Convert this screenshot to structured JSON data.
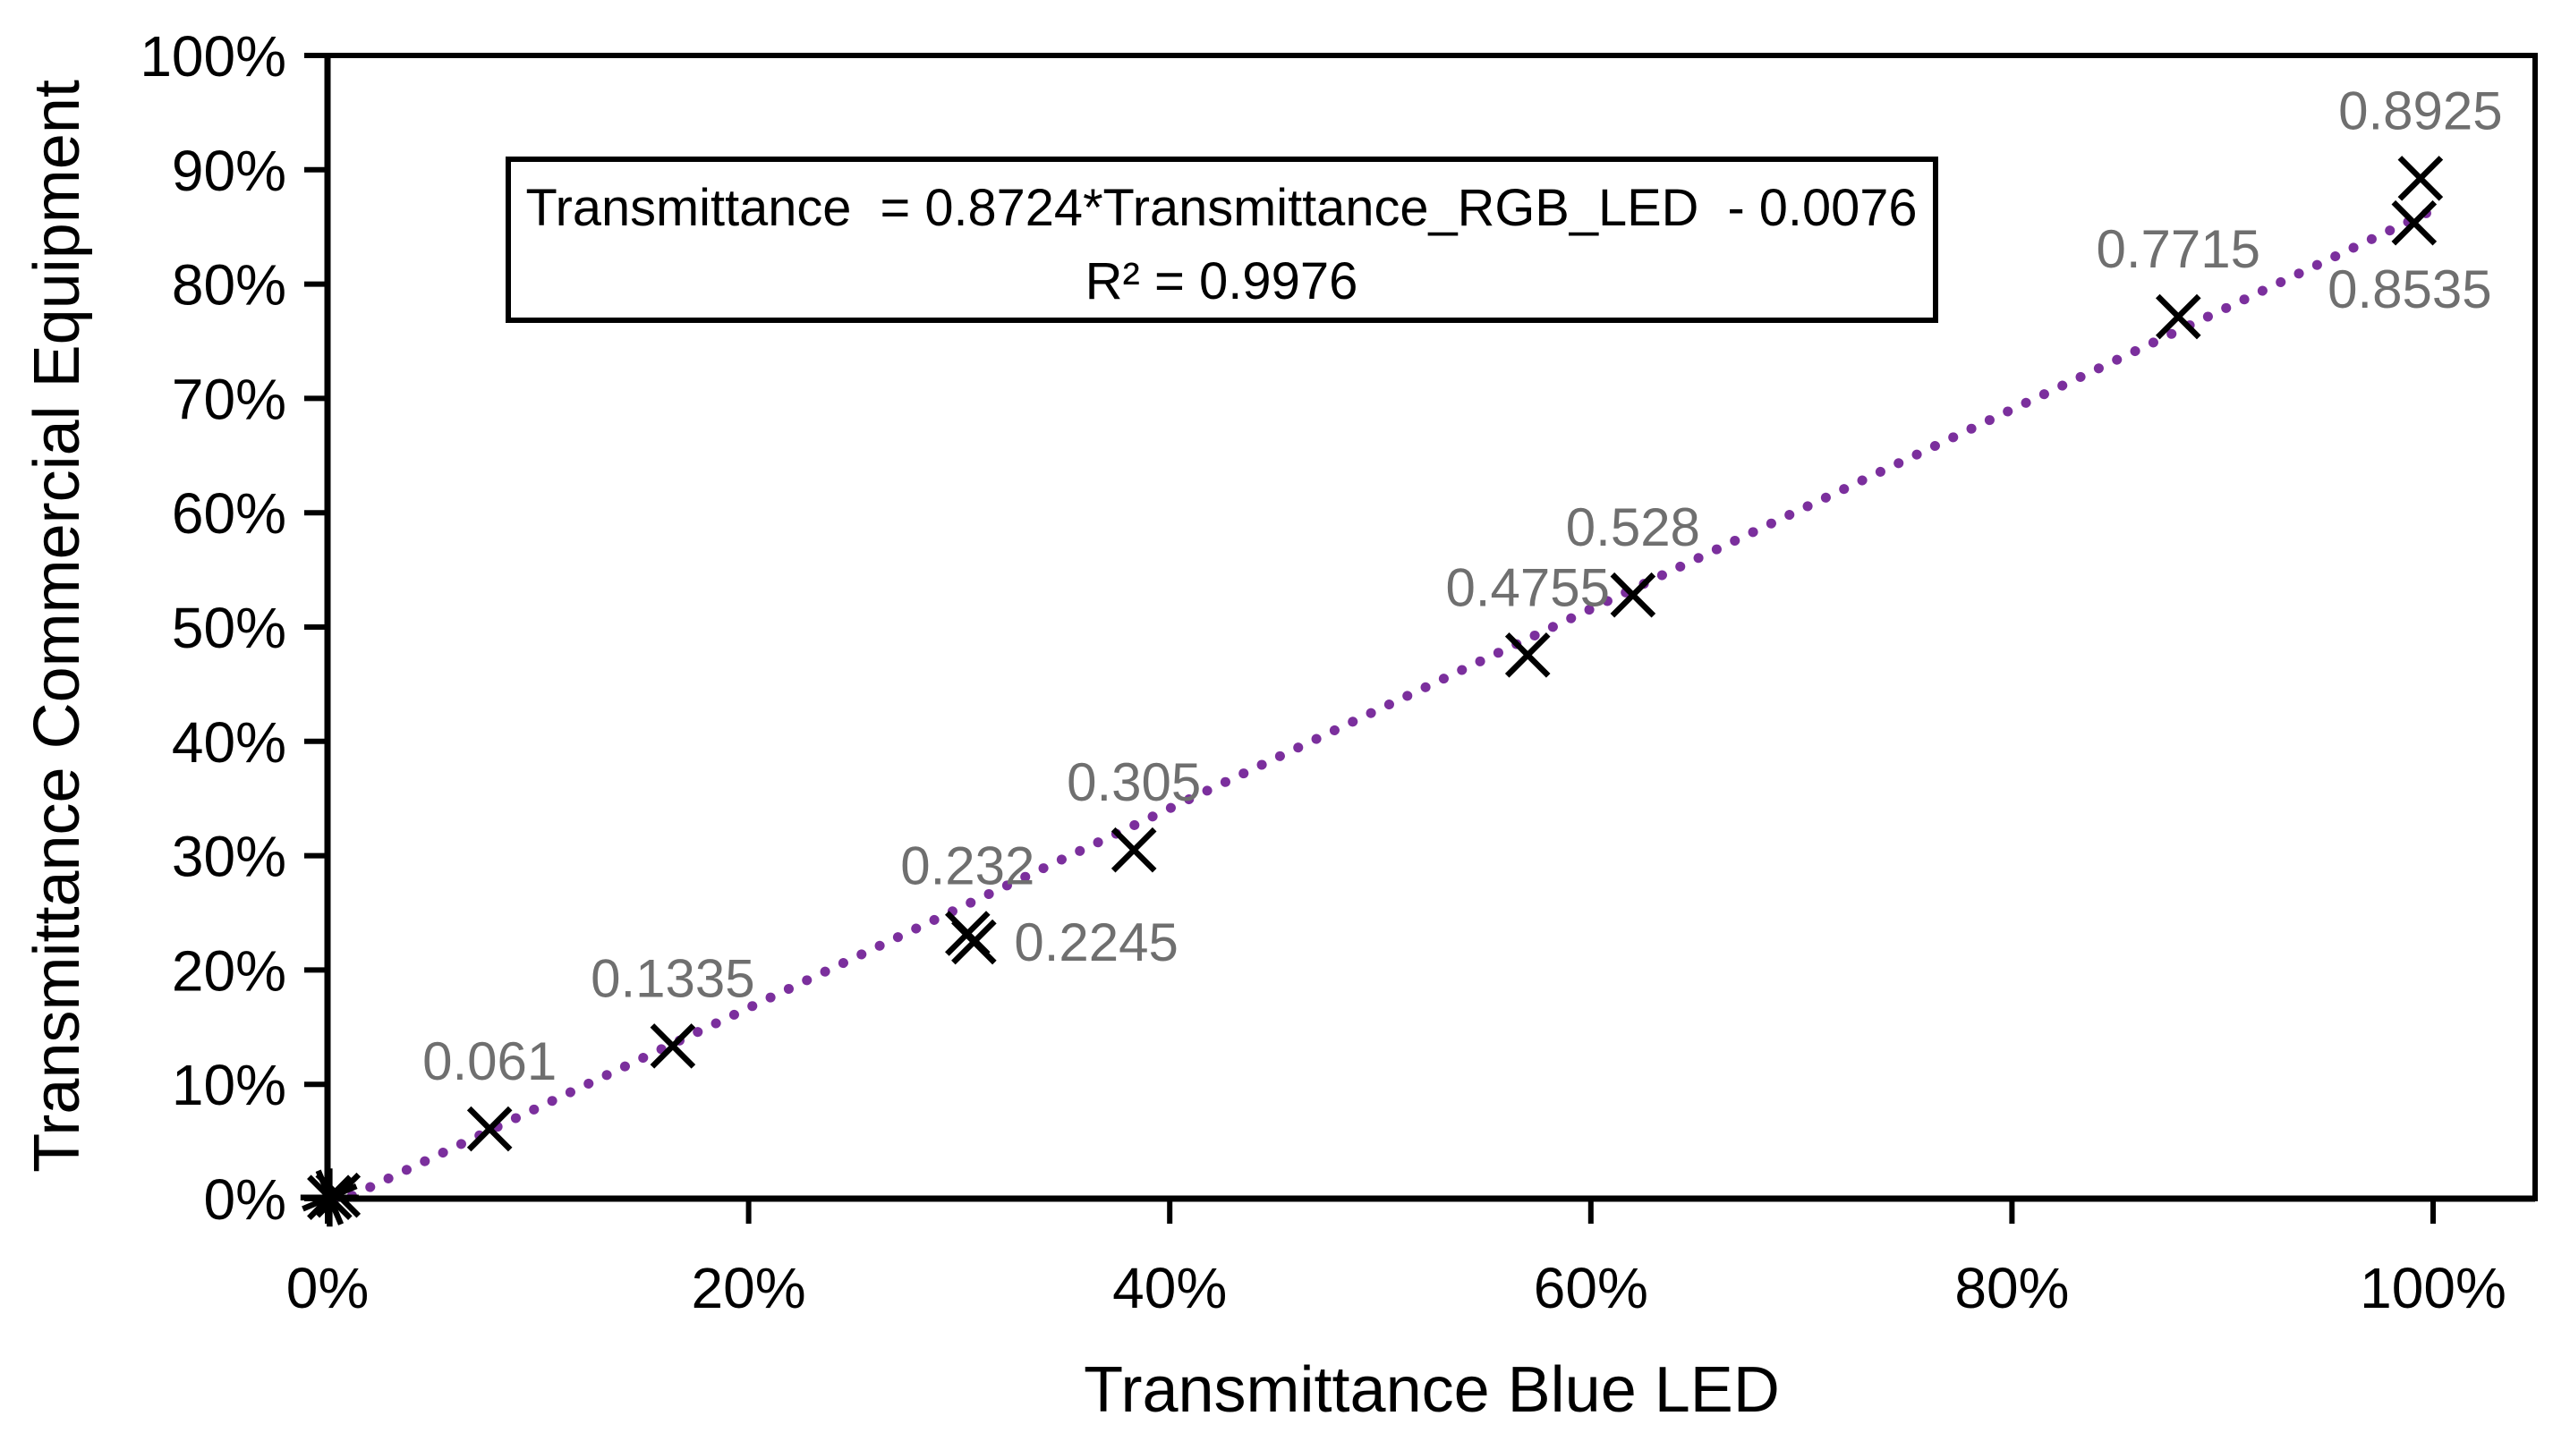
{
  "chart_data": {
    "type": "scatter",
    "title": "",
    "xlabel": "Transmittance Blue LED",
    "ylabel": "Transmittance Commercial Equipment",
    "grid": false,
    "legend": false,
    "x_axis": {
      "min": 0,
      "max": 1.05,
      "ticks": [
        {
          "value": 0.0,
          "label": "0%"
        },
        {
          "value": 0.2,
          "label": "20%"
        },
        {
          "value": 0.4,
          "label": "40%"
        },
        {
          "value": 0.6,
          "label": "60%"
        },
        {
          "value": 0.8,
          "label": "80%"
        },
        {
          "value": 1.0,
          "label": "100%"
        }
      ]
    },
    "y_axis": {
      "min": 0,
      "max": 1.0,
      "ticks": [
        {
          "value": 0.0,
          "label": "0%"
        },
        {
          "value": 0.1,
          "label": "10%"
        },
        {
          "value": 0.2,
          "label": "20%"
        },
        {
          "value": 0.3,
          "label": "30%"
        },
        {
          "value": 0.4,
          "label": "40%"
        },
        {
          "value": 0.5,
          "label": "50%"
        },
        {
          "value": 0.6,
          "label": "60%"
        },
        {
          "value": 0.7,
          "label": "70%"
        },
        {
          "value": 0.8,
          "label": "80%"
        },
        {
          "value": 0.9,
          "label": "90%"
        },
        {
          "value": 1.0,
          "label": "100%"
        }
      ]
    },
    "marker": {
      "shape": "x",
      "color": "#000000"
    },
    "label_color": "#6F6F6F",
    "points": [
      {
        "x": 0.001,
        "y": 0.001,
        "label": null,
        "label_pos": null,
        "star": true
      },
      {
        "x": 0.005,
        "y": 0.003,
        "label": null,
        "label_pos": null,
        "star": false
      },
      {
        "x": 0.077,
        "y": 0.061,
        "label": "0.061",
        "label_pos": "above",
        "star": false
      },
      {
        "x": 0.164,
        "y": 0.1335,
        "label": "0.1335",
        "label_pos": "above",
        "star": false
      },
      {
        "x": 0.304,
        "y": 0.232,
        "label": "0.232",
        "label_pos": "above",
        "star": false
      },
      {
        "x": 0.307,
        "y": 0.2245,
        "label": "0.2245",
        "label_pos": "right",
        "star": false
      },
      {
        "x": 0.383,
        "y": 0.305,
        "label": "0.305",
        "label_pos": "above",
        "star": false
      },
      {
        "x": 0.57,
        "y": 0.4755,
        "label": "0.4755",
        "label_pos": "above",
        "star": false
      },
      {
        "x": 0.62,
        "y": 0.528,
        "label": "0.528",
        "label_pos": "above",
        "star": false
      },
      {
        "x": 0.879,
        "y": 0.7715,
        "label": "0.7715",
        "label_pos": "above",
        "star": false
      },
      {
        "x": 0.994,
        "y": 0.8925,
        "label": "0.8925",
        "label_pos": "above",
        "star": false
      },
      {
        "x": 0.991,
        "y": 0.8535,
        "label": "0.8535",
        "label_pos": "below",
        "star": false
      }
    ],
    "trendline": {
      "slope": 0.8724,
      "intercept": -0.0076,
      "r2": 0.9976,
      "color": "#7B2F9D",
      "style": "dotted",
      "x_start": 0.003,
      "x_end": 1.0
    },
    "equation_box": {
      "line1": "Transmittance  = 0.8724*Transmittance_RGB_LED  - 0.0076",
      "line2": "R² = 0.9976"
    }
  }
}
